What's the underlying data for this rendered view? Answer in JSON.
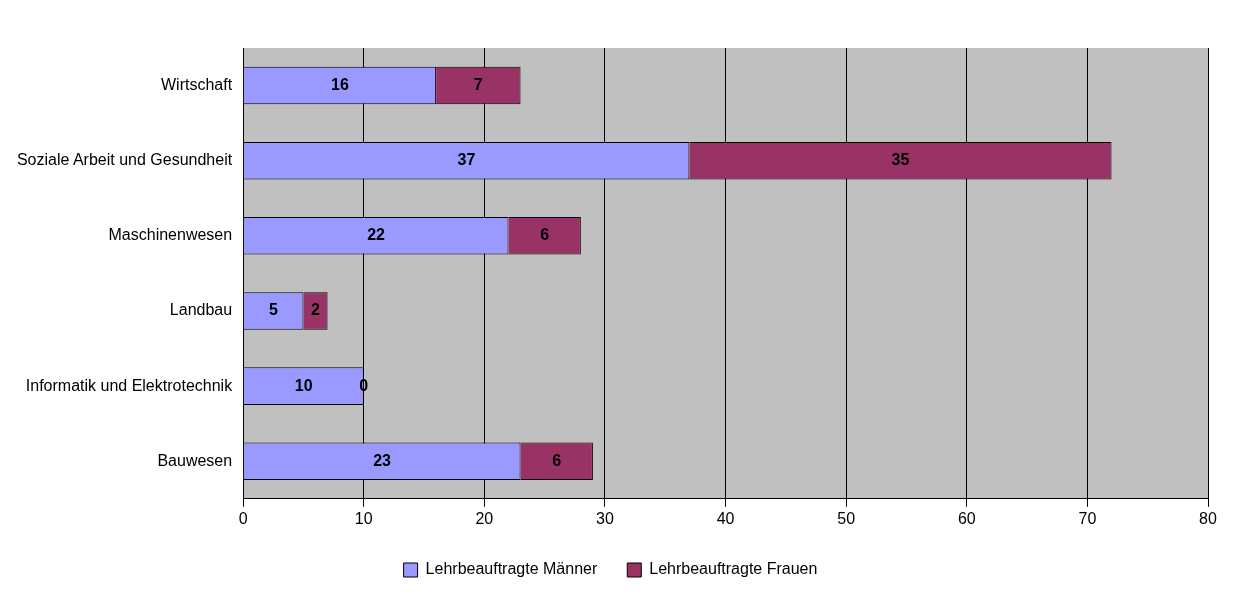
{
  "chart_data": {
    "type": "bar",
    "orientation": "horizontal",
    "stacked": true,
    "categories": [
      "Wirtschaft",
      "Soziale Arbeit und Gesundheit",
      "Maschinenwesen",
      "Landbau",
      "Informatik und Elektrotechnik",
      "Bauwesen"
    ],
    "series": [
      {
        "name": "Lehrbeauftragte Männer",
        "color": "#9999ff",
        "values": [
          16,
          37,
          22,
          5,
          10,
          23
        ]
      },
      {
        "name": "Lehrbeauftragte Frauen",
        "color": "#993366",
        "values": [
          7,
          35,
          6,
          2,
          0,
          6
        ]
      }
    ],
    "xlim": [
      0,
      80
    ],
    "xticks": [
      0,
      10,
      20,
      30,
      40,
      50,
      60,
      70,
      80
    ],
    "grid": "x",
    "legend": "bottom",
    "data_labels": true
  }
}
